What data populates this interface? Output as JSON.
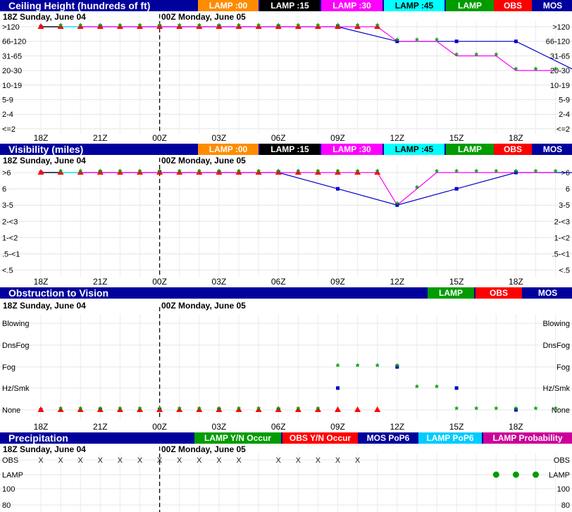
{
  "time_labels": [
    "18Z",
    "21Z",
    "00Z",
    "03Z",
    "06Z",
    "09Z",
    "12Z",
    "15Z",
    "18Z"
  ],
  "colors": {
    "header_bg": "#00009c",
    "lamp00": "#ff8c00",
    "lamp15": "#000000",
    "lamp30": "#ff00ff",
    "lamp45": "#00ffff",
    "lamp": "#009c00",
    "obs": "#ff0000",
    "mos": "#00009c",
    "mos_line": "#0000cc",
    "pop_line": "#cc0099"
  },
  "ceiling": {
    "title": "Ceiling Height (hundreds of ft)",
    "legend": [
      "LAMP :00",
      "LAMP :15",
      "LAMP :30",
      "LAMP :45",
      "LAMP",
      "OBS",
      "MOS"
    ],
    "date_left": "18Z Sunday, June 04",
    "date_right": "00Z Monday, June 05"
  },
  "visibility": {
    "title": "Visibility (miles)",
    "legend": [
      "LAMP :00",
      "LAMP :15",
      "LAMP :30",
      "LAMP :45",
      "LAMP",
      "OBS",
      "MOS"
    ],
    "date_left": "18Z Sunday, June 04",
    "date_right": "00Z Monday, June 05"
  },
  "obstruction": {
    "title": "Obstruction to Vision",
    "legend": [
      "LAMP",
      "OBS",
      "MOS"
    ],
    "date_left": "18Z Sunday, June 04",
    "date_right": "00Z Monday, June 05"
  },
  "precip": {
    "title": "Precipitation",
    "legend": [
      "LAMP Y/N Occur",
      "OBS Y/N Occur",
      "MOS PoP6",
      "LAMP PoP6",
      "LAMP Probability"
    ],
    "date_left": "18Z Sunday, June 04",
    "date_right": "00Z Monday, June 05"
  },
  "chart_data": [
    {
      "type": "line",
      "title": "Ceiling Height (hundreds of ft)",
      "x_unit": "hours since 18Z Sunday, June 04",
      "categories": [
        ">120",
        "66-120",
        "31-65",
        "20-30",
        "10-19",
        "5-9",
        "2-4",
        "<=2"
      ],
      "series": [
        {
          "name": "LAMP",
          "x": [
            1,
            2,
            3,
            4,
            5,
            6,
            7,
            8,
            9,
            10,
            11,
            12,
            13,
            14,
            15,
            16,
            17,
            18,
            19,
            20,
            21,
            22,
            23,
            24,
            25,
            26
          ],
          "values": [
            ">120",
            ">120",
            ">120",
            ">120",
            ">120",
            ">120",
            ">120",
            ">120",
            ">120",
            ">120",
            ">120",
            ">120",
            ">120",
            ">120",
            ">120",
            ">120",
            ">120",
            "66-120",
            "66-120",
            "66-120",
            "31-65",
            "31-65",
            "31-65",
            "20-30",
            "20-30",
            "20-30"
          ]
        },
        {
          "name": "OBS",
          "x": [
            0,
            1,
            2,
            3,
            4,
            5,
            6,
            7,
            8,
            9,
            10,
            11,
            12,
            13,
            14,
            15,
            16,
            17
          ],
          "values": [
            ">120",
            ">120",
            ">120",
            ">120",
            ">120",
            ">120",
            ">120",
            ">120",
            ">120",
            ">120",
            ">120",
            ">120",
            ">120",
            ">120",
            ">120",
            ">120",
            ">120",
            ">120"
          ]
        },
        {
          "name": "MOS",
          "x": [
            0,
            3,
            6,
            9,
            12,
            15,
            18,
            21,
            24,
            27
          ],
          "values": [
            ">120",
            ">120",
            ">120",
            ">120",
            ">120",
            ">120",
            "66-120",
            "66-120",
            "66-120",
            "20-30"
          ]
        }
      ]
    },
    {
      "type": "line",
      "title": "Visibility (miles)",
      "x_unit": "hours since 18Z Sunday, June 04",
      "categories": [
        ">6",
        "6",
        "3-5",
        "2-<3",
        "1-<2",
        ".5-<1",
        "<.5"
      ],
      "series": [
        {
          "name": "LAMP",
          "x": [
            1,
            2,
            3,
            4,
            5,
            6,
            7,
            8,
            9,
            10,
            11,
            12,
            13,
            14,
            15,
            16,
            17,
            18,
            19,
            20,
            21,
            22,
            23,
            24,
            25,
            26
          ],
          "values": [
            ">6",
            ">6",
            ">6",
            ">6",
            ">6",
            ">6",
            ">6",
            ">6",
            ">6",
            ">6",
            ">6",
            ">6",
            ">6",
            ">6",
            ">6",
            ">6",
            ">6",
            "3-5",
            "6",
            ">6",
            ">6",
            ">6",
            ">6",
            ">6",
            ">6",
            ">6"
          ]
        },
        {
          "name": "OBS",
          "x": [
            0,
            1,
            2,
            3,
            4,
            5,
            6,
            7,
            8,
            9,
            10,
            11,
            12,
            13,
            14,
            15,
            16,
            17
          ],
          "values": [
            ">6",
            ">6",
            ">6",
            ">6",
            ">6",
            ">6",
            ">6",
            ">6",
            ">6",
            ">6",
            ">6",
            ">6",
            ">6",
            ">6",
            ">6",
            ">6",
            ">6",
            ">6"
          ]
        },
        {
          "name": "MOS",
          "x": [
            0,
            3,
            6,
            9,
            12,
            15,
            18,
            21,
            24,
            27
          ],
          "values": [
            ">6",
            ">6",
            ">6",
            ">6",
            ">6",
            "6",
            "3-5",
            "6",
            ">6",
            ">6"
          ]
        }
      ]
    },
    {
      "type": "scatter",
      "title": "Obstruction to Vision",
      "x_unit": "hours since 18Z Sunday, June 04",
      "categories": [
        "Blowing",
        "DnsFog",
        "Fog",
        "Hz/Smk",
        "None"
      ],
      "series": [
        {
          "name": "LAMP",
          "x": [
            1,
            2,
            3,
            4,
            5,
            6,
            7,
            8,
            9,
            10,
            11,
            12,
            13,
            14,
            15,
            16,
            17,
            18,
            19,
            20,
            21,
            22,
            23,
            24,
            25,
            26
          ],
          "values": [
            "None",
            "None",
            "None",
            "None",
            "None",
            "None",
            "None",
            "None",
            "None",
            "None",
            "None",
            "None",
            "None",
            "None",
            "Fog",
            "Fog",
            "Fog",
            "Fog",
            "Hz/Smk",
            "Hz/Smk",
            "None",
            "None",
            "None",
            "None",
            "None",
            "None"
          ]
        },
        {
          "name": "OBS",
          "x": [
            0,
            1,
            2,
            3,
            4,
            5,
            6,
            7,
            8,
            9,
            10,
            11,
            12,
            13,
            14,
            15,
            16,
            17
          ],
          "values": [
            "None",
            "None",
            "None",
            "None",
            "None",
            "None",
            "None",
            "None",
            "None",
            "None",
            "None",
            "None",
            "None",
            "None",
            "None",
            "None",
            "None",
            "None"
          ]
        },
        {
          "name": "MOS",
          "x": [
            0,
            3,
            6,
            9,
            12,
            15,
            18,
            21,
            24,
            27
          ],
          "values": [
            "None",
            "None",
            "None",
            "None",
            "None",
            "Hz/Smk",
            "Fog",
            "Hz/Smk",
            "None",
            "None"
          ]
        }
      ]
    },
    {
      "type": "scatter",
      "title": "Precipitation",
      "x_unit": "hours since 18Z Sunday, June 04",
      "row_labels": [
        "OBS",
        "LAMP"
      ],
      "y_ticks": [
        100,
        80
      ],
      "obs_x": [
        0,
        1,
        2,
        3,
        4,
        5,
        6,
        7,
        8,
        9,
        10,
        12,
        13,
        14,
        15,
        16
      ],
      "obs_symbol": "X",
      "lamp_yes_x": [
        23,
        24,
        25
      ]
    }
  ]
}
